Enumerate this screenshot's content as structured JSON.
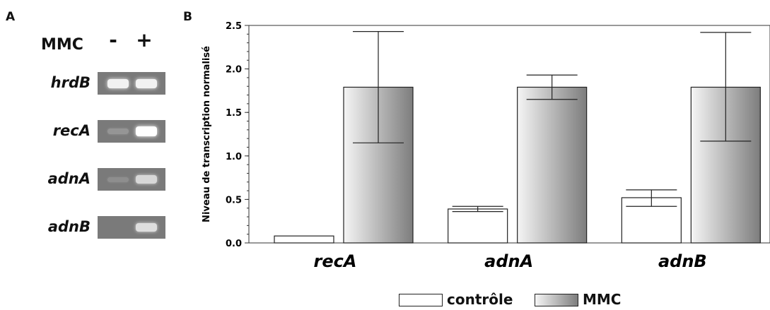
{
  "panels": {
    "a": "A",
    "b": "B"
  },
  "gel": {
    "treatment_label": "MMC",
    "lanes": [
      "-",
      "+"
    ],
    "genes": [
      {
        "name": "hrdB",
        "band_intensity": [
          0.9,
          0.9
        ]
      },
      {
        "name": "recA",
        "band_intensity": [
          0.2,
          1.0
        ]
      },
      {
        "name": "adnA",
        "band_intensity": [
          0.15,
          0.7
        ]
      },
      {
        "name": "adnB",
        "band_intensity": [
          0.0,
          0.75
        ]
      }
    ]
  },
  "chart_data": {
    "type": "bar",
    "title": "",
    "xlabel": "",
    "ylabel": "Niveau de transcription normalisé",
    "categories": [
      "recA",
      "adnA",
      "adnB"
    ],
    "ylim": [
      0,
      2.5
    ],
    "yticks": [
      "0.0",
      "0.5",
      "1.0",
      "1.5",
      "2.0",
      "2.5"
    ],
    "series": [
      {
        "name": "contrôle",
        "values": [
          0.08,
          0.39,
          0.52
        ],
        "err_low": [
          0.08,
          0.36,
          0.42
        ],
        "err_high": [
          0.08,
          0.42,
          0.61
        ],
        "fill": "#ffffff"
      },
      {
        "name": "MMC",
        "values": [
          1.79,
          1.79,
          1.79
        ],
        "err_low": [
          1.15,
          1.65,
          1.17
        ],
        "err_high": [
          2.43,
          1.93,
          2.42
        ],
        "fill": "#a8a8a8"
      }
    ],
    "legend_position": "bottom-center"
  }
}
